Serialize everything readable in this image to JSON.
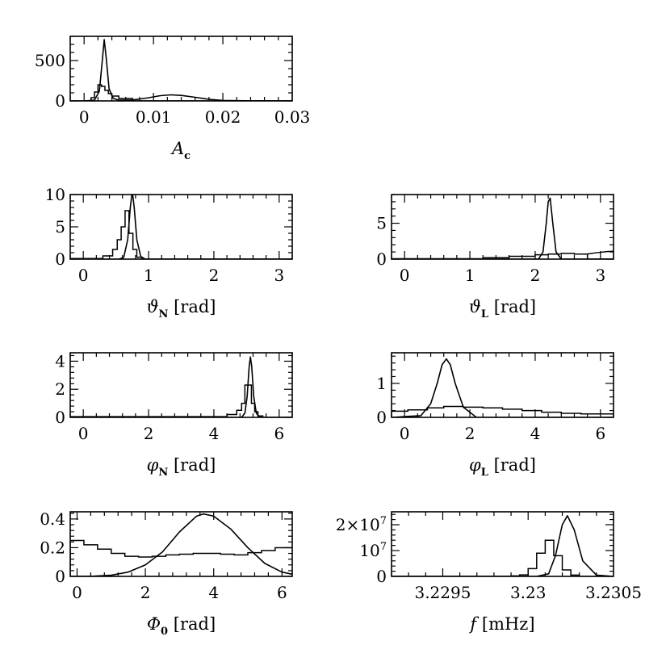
{
  "chart_data": [
    {
      "id": "Ac",
      "type": "line",
      "xlabel": {
        "main": "A",
        "sub": "c",
        "rest": ""
      },
      "xlim": [
        -0.002,
        0.03
      ],
      "ylim": [
        0,
        800
      ],
      "xticks": [
        0,
        0.01,
        0.02,
        0.03
      ],
      "xtick_labels": [
        "0",
        "0.01",
        "0.02",
        "0.03"
      ],
      "yticks": [
        0,
        500
      ],
      "ytick_labels": [
        "0",
        "500"
      ],
      "curve": {
        "x": [
          0.0,
          0.0015,
          0.0022,
          0.0026,
          0.0029,
          0.0032,
          0.0036,
          0.0042,
          0.005,
          0.007,
          0.009,
          0.011,
          0.0125,
          0.014,
          0.016,
          0.018,
          0.02,
          0.024,
          0.03
        ],
        "y": [
          0,
          10,
          120,
          480,
          760,
          520,
          150,
          30,
          10,
          12,
          35,
          65,
          75,
          68,
          45,
          20,
          6,
          1,
          0
        ]
      },
      "histogram": {
        "edges": [
          -0.002,
          0.001,
          0.0015,
          0.002,
          0.0025,
          0.003,
          0.0035,
          0.004,
          0.005,
          0.007,
          0.03
        ],
        "counts": [
          0,
          40,
          110,
          200,
          180,
          130,
          90,
          60,
          30,
          0
        ]
      }
    },
    {
      "id": "thetaN",
      "type": "line",
      "xlabel": {
        "main": "ϑ",
        "sub": "N",
        "rest": " [rad]"
      },
      "xlim": [
        -0.2,
        3.2
      ],
      "ylim": [
        0,
        10
      ],
      "xticks": [
        0,
        1,
        2,
        3
      ],
      "xtick_labels": [
        "0",
        "1",
        "2",
        "3"
      ],
      "yticks": [
        0,
        5,
        10
      ],
      "ytick_labels": [
        "0",
        "5",
        "10"
      ],
      "curve": {
        "x": [
          -0.2,
          0.55,
          0.62,
          0.68,
          0.72,
          0.75,
          0.78,
          0.82,
          0.88,
          0.95,
          3.2
        ],
        "y": [
          0,
          0,
          0.3,
          3,
          8,
          10.5,
          8,
          3,
          0.4,
          0,
          0
        ]
      },
      "histogram": {
        "edges": [
          -0.2,
          0.3,
          0.45,
          0.52,
          0.58,
          0.64,
          0.7,
          0.76,
          0.82,
          0.9,
          3.2
        ],
        "counts": [
          0.1,
          0.5,
          1.5,
          3,
          5,
          7.5,
          4,
          1.5,
          0.3,
          0
        ]
      }
    },
    {
      "id": "thetaL",
      "type": "line",
      "xlabel": {
        "main": "ϑ",
        "sub": "L",
        "rest": " [rad]"
      },
      "xlim": [
        -0.2,
        3.2
      ],
      "ylim": [
        0,
        9
      ],
      "xticks": [
        0,
        1,
        2,
        3
      ],
      "xtick_labels": [
        "0",
        "1",
        "2",
        "3"
      ],
      "yticks": [
        0,
        5
      ],
      "ytick_labels": [
        "0",
        "5"
      ],
      "curve": {
        "x": [
          -0.2,
          2.05,
          2.12,
          2.17,
          2.2,
          2.23,
          2.27,
          2.32,
          2.4,
          3.2
        ],
        "y": [
          0,
          0,
          1,
          5,
          8,
          8.5,
          5,
          1,
          0,
          0
        ]
      },
      "histogram": {
        "edges": [
          -0.2,
          1.2,
          1.6,
          2.0,
          2.2,
          2.4,
          2.6,
          2.8,
          3.2
        ],
        "counts": [
          0.05,
          0.2,
          0.4,
          0.6,
          0.7,
          0.8,
          0.7,
          0
        ]
      },
      "smooth": {
        "x": [
          2.8,
          2.9,
          3.0,
          3.1,
          3.2
        ],
        "y": [
          0.7,
          0.85,
          0.95,
          1.05,
          1.1
        ]
      }
    },
    {
      "id": "phiN",
      "type": "line",
      "xlabel": {
        "main": "φ",
        "sub": "N",
        "rest": " [rad]"
      },
      "xlim": [
        -0.4,
        6.4
      ],
      "ylim": [
        0,
        4.6
      ],
      "xticks": [
        0,
        2,
        4,
        6
      ],
      "xtick_labels": [
        "0",
        "2",
        "4",
        "6"
      ],
      "yticks": [
        0,
        2,
        4
      ],
      "ytick_labels": [
        "0",
        "2",
        "4"
      ],
      "curve": {
        "x": [
          -0.4,
          4.85,
          4.95,
          5.02,
          5.08,
          5.12,
          5.16,
          5.22,
          5.3,
          5.4,
          6.4
        ],
        "y": [
          0,
          0,
          0.3,
          1.5,
          3.6,
          4.3,
          3.6,
          1.5,
          0.3,
          0,
          0
        ]
      },
      "histogram": {
        "edges": [
          -0.4,
          4.4,
          4.7,
          4.85,
          4.95,
          5.05,
          5.15,
          5.25,
          5.35,
          5.5,
          6.4
        ],
        "counts": [
          0.05,
          0.2,
          0.5,
          1.0,
          2.3,
          2.3,
          1.0,
          0.4,
          0.1,
          0
        ]
      }
    },
    {
      "id": "phiL",
      "type": "line",
      "xlabel": {
        "main": "φ",
        "sub": "L",
        "rest": " [rad]"
      },
      "xlim": [
        -0.4,
        6.4
      ],
      "ylim": [
        0,
        1.9
      ],
      "xticks": [
        0,
        2,
        4,
        6
      ],
      "xtick_labels": [
        "0",
        "2",
        "4",
        "6"
      ],
      "yticks": [
        0,
        1
      ],
      "ytick_labels": [
        "0",
        "1"
      ],
      "curve": {
        "x": [
          -0.4,
          0.5,
          0.8,
          1.0,
          1.15,
          1.28,
          1.4,
          1.55,
          1.8,
          2.2,
          6.4
        ],
        "y": [
          0,
          0.05,
          0.4,
          1.0,
          1.55,
          1.72,
          1.55,
          1.0,
          0.3,
          0,
          0
        ]
      },
      "histogram": {
        "edges": [
          -0.4,
          0.1,
          0.7,
          1.2,
          1.8,
          2.4,
          3.0,
          3.6,
          4.2,
          4.8,
          5.4,
          6.4
        ],
        "counts": [
          0.18,
          0.22,
          0.28,
          0.32,
          0.3,
          0.28,
          0.24,
          0.2,
          0.15,
          0.12,
          0.1
        ]
      }
    },
    {
      "id": "Phi0",
      "type": "line",
      "xlabel": {
        "main": "Φ",
        "sub": "0",
        "rest": " [rad]"
      },
      "xlim": [
        -0.2,
        6.3
      ],
      "ylim": [
        0,
        0.45
      ],
      "xticks": [
        0,
        2,
        4,
        6
      ],
      "xtick_labels": [
        "0",
        "2",
        "4",
        "6"
      ],
      "yticks": [
        0,
        0.2,
        0.4
      ],
      "ytick_labels": [
        "0",
        "0.2",
        "0.4"
      ],
      "curve": {
        "x": [
          -0.2,
          0.5,
          1.0,
          1.5,
          2.0,
          2.5,
          3.0,
          3.5,
          3.7,
          4.0,
          4.5,
          5.0,
          5.5,
          6.0,
          6.3
        ],
        "y": [
          0,
          0.002,
          0.008,
          0.03,
          0.08,
          0.17,
          0.31,
          0.42,
          0.435,
          0.42,
          0.33,
          0.2,
          0.09,
          0.03,
          0.015
        ]
      },
      "histogram": {
        "edges": [
          -0.2,
          0.2,
          0.6,
          1.0,
          1.4,
          1.8,
          2.2,
          2.6,
          3.0,
          3.4,
          3.8,
          4.2,
          4.6,
          5.0,
          5.4,
          5.8,
          6.3
        ],
        "counts": [
          0.25,
          0.22,
          0.19,
          0.16,
          0.14,
          0.135,
          0.14,
          0.15,
          0.155,
          0.16,
          0.16,
          0.155,
          0.15,
          0.165,
          0.18,
          0.2
        ]
      }
    },
    {
      "id": "f",
      "type": "line",
      "xlabel": {
        "main": "f",
        "sub": "",
        "rest": " [mHz]"
      },
      "xlim": [
        3.2292,
        3.2305
      ],
      "ylim": [
        0,
        25000000
      ],
      "xticks": [
        3.2295,
        3.23,
        3.2305
      ],
      "xtick_labels": [
        "3.2295",
        "3.23",
        "3.2305"
      ],
      "yticks": [
        0,
        10000000,
        20000000
      ],
      "ytick_labels": [
        "0",
        "10^7",
        "2×10^7"
      ],
      "curve": {
        "x": [
          3.2292,
          3.23005,
          3.23012,
          3.23016,
          3.2302,
          3.23023,
          3.23027,
          3.23032,
          3.2304,
          3.2305
        ],
        "y": [
          0,
          0,
          1000000,
          8000000,
          20000000,
          23500000,
          18000000,
          6000000,
          500000,
          0
        ]
      },
      "histogram": {
        "edges": [
          3.2292,
          3.2299,
          3.22995,
          3.23,
          3.23005,
          3.2301,
          3.23015,
          3.2302,
          3.23025,
          3.2303,
          3.2305
        ],
        "counts": [
          0,
          200000,
          600000,
          3000000,
          9000000,
          14000000,
          8000000,
          2500000,
          500000,
          0
        ]
      }
    }
  ]
}
